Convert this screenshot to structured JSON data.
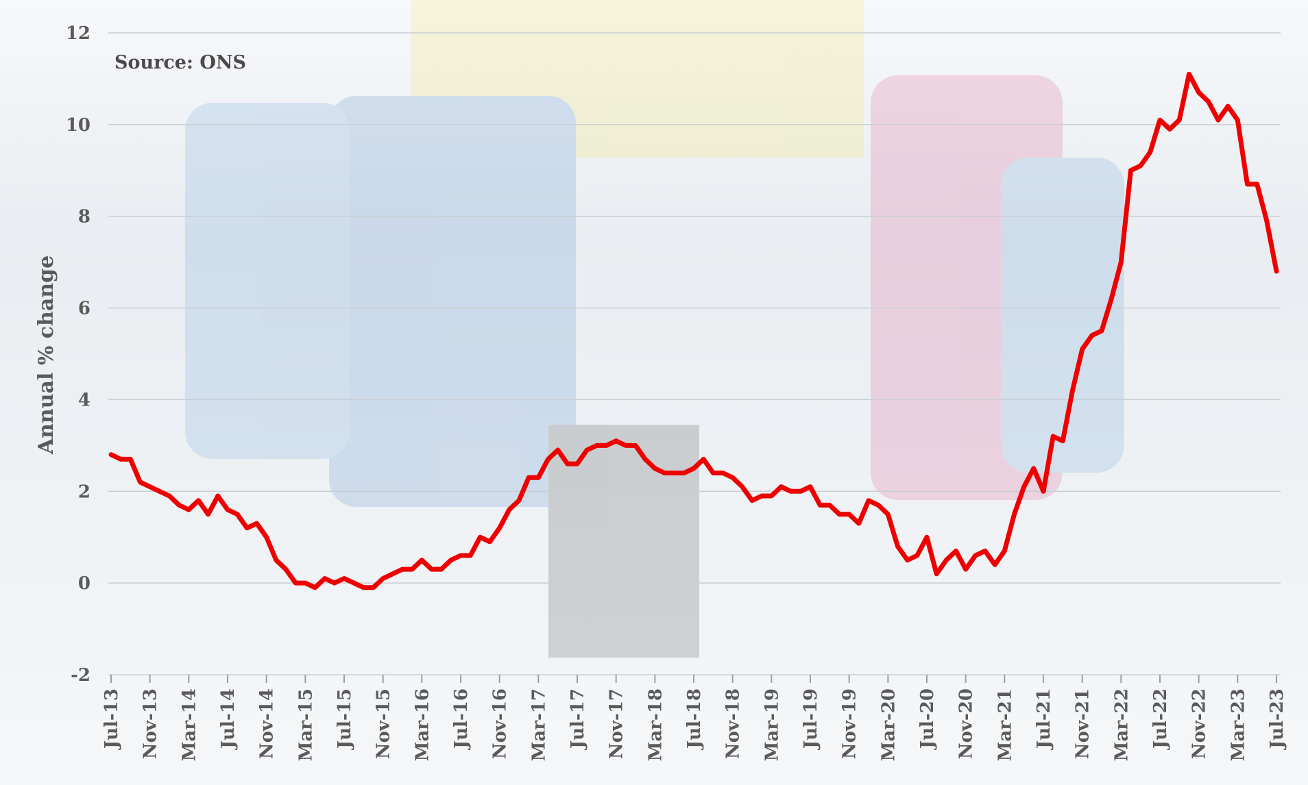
{
  "chart_data": {
    "type": "line",
    "ylabel": "Annual % change",
    "annotation": "Source: ONS",
    "ylim": [
      -2,
      12
    ],
    "yticks": [
      -2,
      0,
      2,
      4,
      6,
      8,
      10,
      12
    ],
    "xtick_labels": [
      "Jul-13",
      "Nov-13",
      "Mar-14",
      "Jul-14",
      "Nov-14",
      "Mar-15",
      "Jul-15",
      "Nov-15",
      "Mar-16",
      "Jul-16",
      "Nov-16",
      "Mar-17",
      "Jul-17",
      "Nov-17",
      "Mar-18",
      "Jul-18",
      "Nov-18",
      "Mar-19",
      "Jul-19",
      "Nov-19",
      "Mar-20",
      "Jul-20",
      "Nov-20",
      "Mar-21",
      "Jul-21",
      "Nov-21",
      "Mar-22",
      "Jul-22",
      "Nov-22",
      "Mar-23",
      "Jul-23"
    ],
    "x_start": "Jul-13",
    "x_end": "Jul-23",
    "series": [
      {
        "color": "#ee0000",
        "values": [
          2.8,
          2.7,
          2.7,
          2.2,
          2.1,
          2.0,
          1.9,
          1.7,
          1.6,
          1.8,
          1.5,
          1.9,
          1.6,
          1.5,
          1.2,
          1.3,
          1.0,
          0.5,
          0.3,
          0.0,
          0.0,
          -0.1,
          0.1,
          0.0,
          0.1,
          0.0,
          -0.1,
          -0.1,
          0.1,
          0.2,
          0.3,
          0.3,
          0.5,
          0.3,
          0.3,
          0.5,
          0.6,
          0.6,
          1.0,
          0.9,
          1.2,
          1.6,
          1.8,
          2.3,
          2.3,
          2.7,
          2.9,
          2.6,
          2.6,
          2.9,
          3.0,
          3.0,
          3.1,
          3.0,
          3.0,
          2.7,
          2.5,
          2.4,
          2.4,
          2.4,
          2.5,
          2.7,
          2.4,
          2.4,
          2.3,
          2.1,
          1.8,
          1.9,
          1.9,
          2.1,
          2.0,
          2.0,
          2.1,
          1.7,
          1.7,
          1.5,
          1.5,
          1.3,
          1.8,
          1.7,
          1.5,
          0.8,
          0.5,
          0.6,
          1.0,
          0.2,
          0.5,
          0.7,
          0.3,
          0.6,
          0.7,
          0.4,
          0.7,
          1.5,
          2.1,
          2.5,
          2.0,
          3.2,
          3.1,
          4.2,
          5.1,
          5.4,
          5.5,
          6.2,
          7.0,
          9.0,
          9.1,
          9.4,
          10.1,
          9.9,
          10.1,
          11.1,
          10.7,
          10.5,
          10.1,
          10.4,
          10.1,
          8.7,
          8.7,
          7.9,
          6.8
        ]
      }
    ],
    "grid": true
  }
}
